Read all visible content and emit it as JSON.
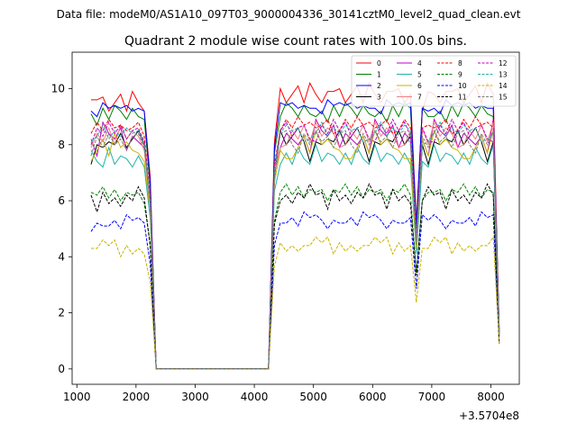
{
  "chart_data": {
    "type": "line",
    "suptitle": "Data file: modeM0/AS1A10_097T03_9000004336_30141cztM0_level2_quad_clean.evt",
    "title": "Quadrant 2 module wise count rates with 100.0s bins.",
    "xlabel": "",
    "ylabel": "",
    "x_offset_label": "+3.5704e8",
    "xlim": [
      920,
      8480
    ],
    "ylim": [
      -0.55,
      11.3
    ],
    "xticks": [
      1000,
      2000,
      3000,
      4000,
      5000,
      6000,
      7000,
      8000
    ],
    "yticks": [
      0,
      2,
      4,
      6,
      8,
      10
    ],
    "x": [
      1240,
      1340,
      1440,
      1540,
      1640,
      1740,
      1840,
      1940,
      2040,
      2140,
      2240,
      2340,
      2440,
      2540,
      2640,
      2740,
      2840,
      2940,
      3040,
      3140,
      3240,
      3340,
      3440,
      3540,
      3640,
      3740,
      3840,
      3940,
      4040,
      4140,
      4240,
      4340,
      4440,
      4540,
      4640,
      4740,
      4840,
      4940,
      5040,
      5140,
      5240,
      5340,
      5440,
      5540,
      5640,
      5740,
      5840,
      5940,
      6040,
      6140,
      6240,
      6340,
      6440,
      6540,
      6640,
      6740,
      6840,
      6940,
      7040,
      7140,
      7240,
      7340,
      7440,
      7540,
      7640,
      7740,
      7840,
      7940,
      8040,
      8140
    ],
    "series": [
      {
        "name": "0",
        "color": "#ff0000",
        "dash": "solid",
        "on": [
          9.6,
          9.6,
          9.7,
          9.2,
          9.5,
          9.8,
          9.2,
          9.9,
          9.5,
          9.2
        ]
      },
      {
        "name": "1",
        "color": "#008000",
        "dash": "solid",
        "on": [
          9.1,
          8.7,
          9.3,
          8.9,
          9.4,
          9.2,
          8.9,
          9.3,
          9.0,
          8.9
        ]
      },
      {
        "name": "2",
        "color": "#0000ff",
        "dash": "solid",
        "on": [
          9.2,
          9.0,
          9.5,
          9.3,
          9.4,
          9.3,
          9.4,
          9.2,
          9.3,
          9.2
        ]
      },
      {
        "name": "3",
        "color": "#000000",
        "dash": "solid",
        "on": [
          7.3,
          8.0,
          7.9,
          8.1,
          8.0,
          8.4,
          7.9,
          8.2,
          8.5,
          8.0
        ]
      },
      {
        "name": "4",
        "color": "#c000c0",
        "dash": "solid",
        "on": [
          8.2,
          7.6,
          8.8,
          8.4,
          8.2,
          8.6,
          7.8,
          8.3,
          8.1,
          7.9
        ]
      },
      {
        "name": "5",
        "color": "#20b2aa",
        "dash": "solid",
        "on": [
          7.8,
          7.4,
          7.2,
          7.9,
          7.3,
          7.6,
          7.5,
          7.2,
          7.6,
          7.2
        ]
      },
      {
        "name": "6",
        "color": "#c8b400",
        "dash": "solid",
        "on": [
          7.4,
          7.8,
          8.2,
          7.6,
          8.4,
          7.9,
          8.1,
          7.8,
          7.7,
          7.4
        ]
      },
      {
        "name": "7",
        "color": "#f08080",
        "dash": "solid",
        "on": [
          7.9,
          8.4,
          8.1,
          8.6,
          8.0,
          8.7,
          8.2,
          8.5,
          8.3,
          7.8
        ]
      },
      {
        "name": "8",
        "color": "#ff0000",
        "dash": "dashed",
        "on": [
          8.4,
          8.8,
          8.5,
          8.9,
          8.6,
          8.7,
          8.5,
          8.6,
          8.8,
          8.3
        ]
      },
      {
        "name": "9",
        "color": "#008000",
        "dash": "dashed",
        "on": [
          6.3,
          6.2,
          6.5,
          6.1,
          6.4,
          6.0,
          6.3,
          6.2,
          6.3,
          5.9
        ]
      },
      {
        "name": "10",
        "color": "#0000ff",
        "dash": "dashed",
        "on": [
          4.9,
          5.2,
          5.1,
          5.1,
          5.3,
          5.0,
          5.5,
          5.3,
          5.4,
          5.2
        ]
      },
      {
        "name": "11",
        "color": "#000000",
        "dash": "dashed",
        "on": [
          6.2,
          5.6,
          6.3,
          5.9,
          6.1,
          5.8,
          6.2,
          6.0,
          6.5,
          6.1
        ]
      },
      {
        "name": "12",
        "color": "#c000c0",
        "dash": "dashed",
        "on": [
          8.0,
          8.6,
          8.3,
          8.8,
          8.4,
          8.7,
          8.2,
          8.5,
          8.6,
          8.1
        ]
      },
      {
        "name": "13",
        "color": "#20b2aa",
        "dash": "dashed",
        "on": [
          8.1,
          8.3,
          8.7,
          8.2,
          8.5,
          8.3,
          8.6,
          8.4,
          8.5,
          8.0
        ]
      },
      {
        "name": "14",
        "color": "#c8b400",
        "dash": "dashed",
        "on": [
          4.3,
          4.3,
          4.6,
          4.4,
          4.6,
          4.0,
          4.4,
          4.1,
          4.3,
          4.1
        ]
      },
      {
        "name": "15",
        "color": "#7f7f7f",
        "dash": "dashed",
        "on": [
          7.6,
          8.3,
          7.9,
          8.4,
          8.0,
          8.2,
          7.8,
          8.3,
          8.4,
          7.9
        ]
      }
    ]
  }
}
